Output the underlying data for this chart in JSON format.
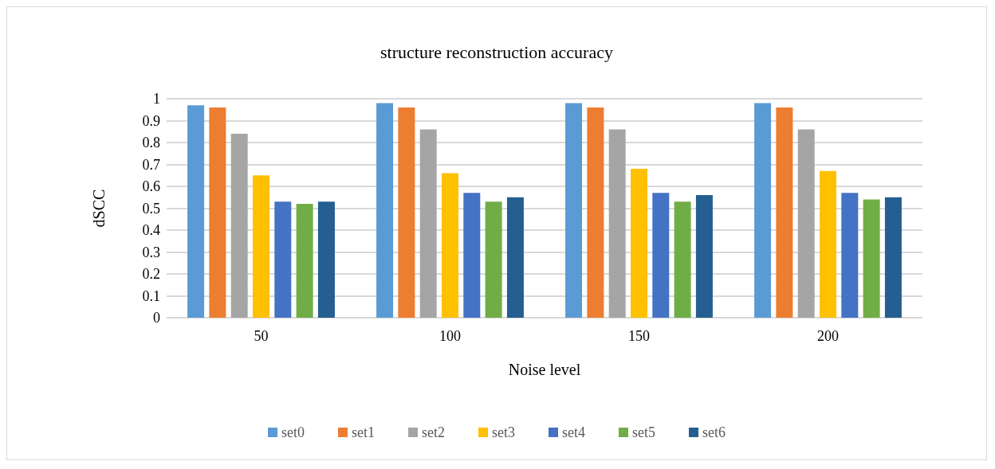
{
  "chart_data": {
    "type": "bar",
    "title": "structure reconstruction accuracy",
    "xlabel": "Noise level",
    "ylabel": "dSCC",
    "categories": [
      "50",
      "100",
      "150",
      "200"
    ],
    "series": [
      {
        "name": "set0",
        "color": "#5b9bd5",
        "values": [
          0.97,
          0.98,
          0.98,
          0.98
        ]
      },
      {
        "name": "set1",
        "color": "#ed7d31",
        "values": [
          0.96,
          0.96,
          0.96,
          0.96
        ]
      },
      {
        "name": "set2",
        "color": "#a5a5a5",
        "values": [
          0.84,
          0.86,
          0.86,
          0.86
        ]
      },
      {
        "name": "set3",
        "color": "#ffc000",
        "values": [
          0.65,
          0.66,
          0.68,
          0.67
        ]
      },
      {
        "name": "set4",
        "color": "#4472c4",
        "values": [
          0.53,
          0.57,
          0.57,
          0.57
        ]
      },
      {
        "name": "set5",
        "color": "#70ad47",
        "values": [
          0.52,
          0.53,
          0.53,
          0.54
        ]
      },
      {
        "name": "set6",
        "color": "#255e91",
        "values": [
          0.53,
          0.55,
          0.56,
          0.55
        ]
      }
    ],
    "ylim": [
      0,
      1
    ],
    "yticks": [
      0,
      0.1,
      0.2,
      0.3,
      0.4,
      0.5,
      0.6,
      0.7,
      0.8,
      0.9,
      1
    ],
    "grid": "y",
    "legend": "bottom"
  }
}
